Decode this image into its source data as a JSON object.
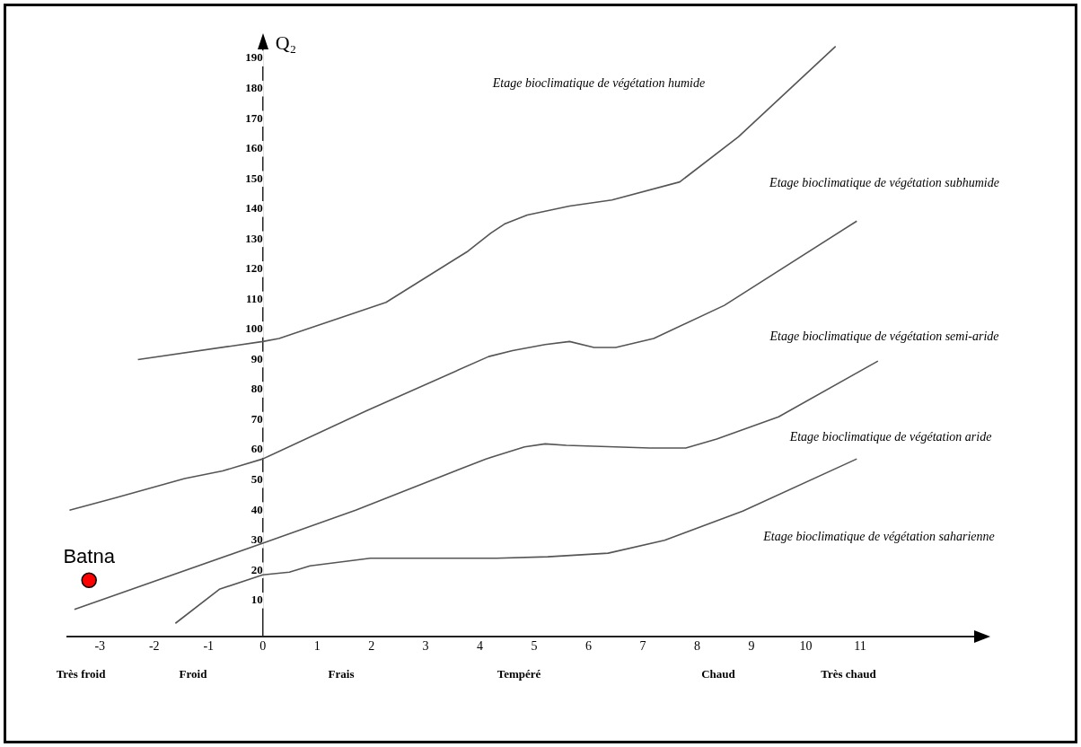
{
  "chart_data": {
    "type": "line",
    "ylabel": "Q₂",
    "xlim": [
      -3.6,
      13.3
    ],
    "ylim": [
      -2,
      196
    ],
    "xticks": [
      -3,
      -2,
      -1,
      0,
      1,
      2,
      3,
      4,
      5,
      6,
      7,
      8,
      9,
      10,
      11
    ],
    "yticks": [
      10,
      20,
      30,
      40,
      50,
      60,
      70,
      80,
      90,
      100,
      110,
      120,
      130,
      140,
      150,
      160,
      170,
      180,
      190
    ],
    "marker": "none",
    "legend": false,
    "series": [
      {
        "type": "line",
        "color": "#555555",
        "x": [
          -2.3,
          0,
          0.3,
          2.27,
          3.78,
          4.2,
          4.45,
          4.87,
          5.65,
          6.43,
          7.68,
          8.76,
          10.55
        ],
        "values": [
          90,
          96,
          97,
          109,
          126,
          132,
          135,
          138,
          141,
          143,
          149,
          164,
          194
        ]
      },
      {
        "type": "line",
        "color": "#555555",
        "x": [
          -3.56,
          -2.73,
          -1.44,
          -0.74,
          0,
          1.91,
          4.16,
          4.6,
          5.2,
          5.65,
          6.1,
          6.5,
          7.2,
          8.5,
          10.94
        ],
        "values": [
          40,
          44,
          50.5,
          53,
          57,
          73,
          91,
          93,
          95,
          96,
          94,
          94,
          97,
          108,
          136
        ]
      },
      {
        "type": "line",
        "color": "#555555",
        "x": [
          -3.47,
          0,
          1.71,
          4.11,
          4.82,
          5.2,
          5.59,
          7.13,
          7.79,
          8.36,
          9.5,
          11.33
        ],
        "values": [
          7,
          29,
          40,
          57,
          61,
          62,
          61.5,
          60.6,
          60.6,
          63.6,
          71,
          89.5
        ]
      },
      {
        "type": "line",
        "color": "#555555",
        "x": [
          -1.61,
          -0.8,
          0,
          0.49,
          0.87,
          1.98,
          4.3,
          5.25,
          6.36,
          7.4,
          8.84,
          10.94
        ],
        "values": [
          2.4,
          13.7,
          18.5,
          19.4,
          21.5,
          24,
          24,
          24.5,
          25.7,
          30,
          39.7,
          57
        ]
      },
      {
        "name": "Batna",
        "type": "scatter",
        "color": "#ff0000",
        "marker": "circle",
        "x": [
          -3.2
        ],
        "values": [
          16.7
        ]
      }
    ],
    "annotations": [
      "Etage bioclimatique de végétation humide",
      "Etage bioclimatique de végétation subhumide",
      "Etage bioclimatique de végétation semi-aride",
      "Etage bioclimatique de végétation aride",
      "Etage bioclimatique de végétation saharienne",
      "Très froid",
      "Froid",
      "Frais",
      "Tempéré",
      "Chaud",
      "Très chaud"
    ]
  }
}
